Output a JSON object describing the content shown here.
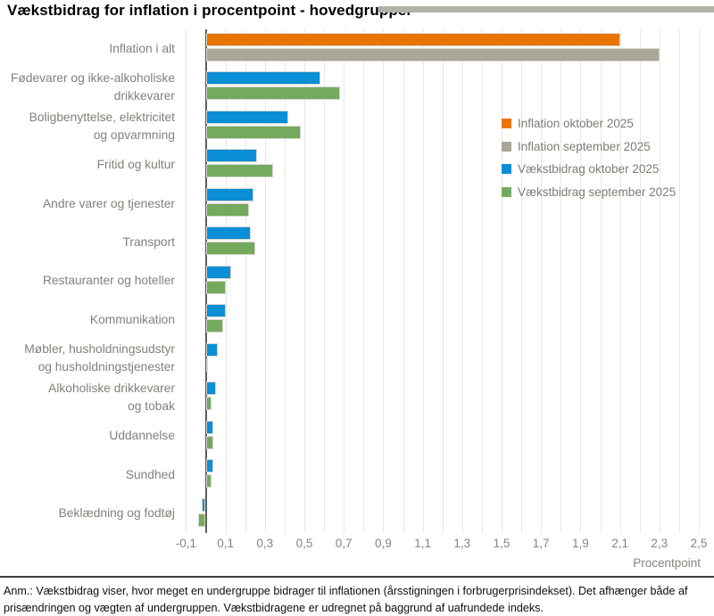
{
  "title": "Vækstbidrag for inflation i procentpoint - hovedgrupper",
  "footnote": "Anm.: Vækstbidrag viser, hvor meget en undergruppe bidrager til inflationen (årsstigningen i forbrugerprisindekset). Det afhænger både af prisændringen og vægten af undergruppen. Vækstbidragene er udregnet på baggrund af uafrundede indeks.",
  "colors": {
    "orange": "#e87405",
    "gray": "#a9a79a",
    "blue": "#0a8ed6",
    "green": "#73aa5e",
    "gridline": "#e9e7e0",
    "zero_axis": "#5f5e53",
    "axis_text": "#85847c",
    "title_rule": "#b2b1a8"
  },
  "chart_data": {
    "type": "bar",
    "orientation": "horizontal",
    "title": "Vækstbidrag for inflation i procentpoint - hovedgrupper",
    "xlabel": "Procentpoint",
    "ylabel": "",
    "xlim": [
      -0.111,
      2.509
    ],
    "grid": true,
    "grid_step": 0.1,
    "legend_position": "inside-right-upper",
    "tick_labels": [
      "-0,1",
      "0,1",
      "0,3",
      "0,5",
      "0,7",
      "0,9",
      "1,1",
      "1,3",
      "1,5",
      "1,7",
      "1,9",
      "2,1",
      "2,3",
      "2,5"
    ],
    "tick_values": [
      -0.1,
      0.1,
      0.3,
      0.5,
      0.7,
      0.9,
      1.1,
      1.3,
      1.5,
      1.7,
      1.9,
      2.1,
      2.3,
      2.5
    ],
    "categories": [
      [
        "Inflation i alt"
      ],
      [
        "Fødevarer og ikke-alkoholiske",
        "drikkevarer"
      ],
      [
        "Boligbenyttelse, elektricitet",
        "og opvarmning"
      ],
      [
        "Fritid og kultur"
      ],
      [
        "Andre varer og tjenester"
      ],
      [
        "Transport"
      ],
      [
        "Restauranter og hoteller"
      ],
      [
        "Kommunikation"
      ],
      [
        "Møbler, husholdningsudstyr",
        "og husholdningstjenester"
      ],
      [
        "Alkoholiske drikkevarer",
        "og tobak"
      ],
      [
        "Uddannelse"
      ],
      [
        "Sundhed"
      ],
      [
        "Beklædning og fodtøj"
      ]
    ],
    "series": [
      {
        "name": "Inflation oktober 2025",
        "color": "#e87405",
        "values": [
          2.1,
          null,
          null,
          null,
          null,
          null,
          null,
          null,
          null,
          null,
          null,
          null,
          null
        ]
      },
      {
        "name": "Inflation september 2025",
        "color": "#a9a79a",
        "values": [
          2.3,
          null,
          null,
          null,
          null,
          null,
          null,
          null,
          null,
          null,
          null,
          null,
          null
        ]
      },
      {
        "name": "Vækstbidrag oktober 2025",
        "color": "#0a8ed6",
        "values": [
          null,
          0.58,
          0.42,
          0.26,
          0.24,
          0.23,
          0.13,
          0.1,
          0.06,
          0.05,
          0.04,
          0.04,
          -0.02
        ]
      },
      {
        "name": "Vækstbidrag september 2025",
        "color": "#73aa5e",
        "values": [
          null,
          0.68,
          0.48,
          0.34,
          0.22,
          0.25,
          0.1,
          0.09,
          0.01,
          0.03,
          0.04,
          0.03,
          -0.04
        ]
      }
    ]
  }
}
